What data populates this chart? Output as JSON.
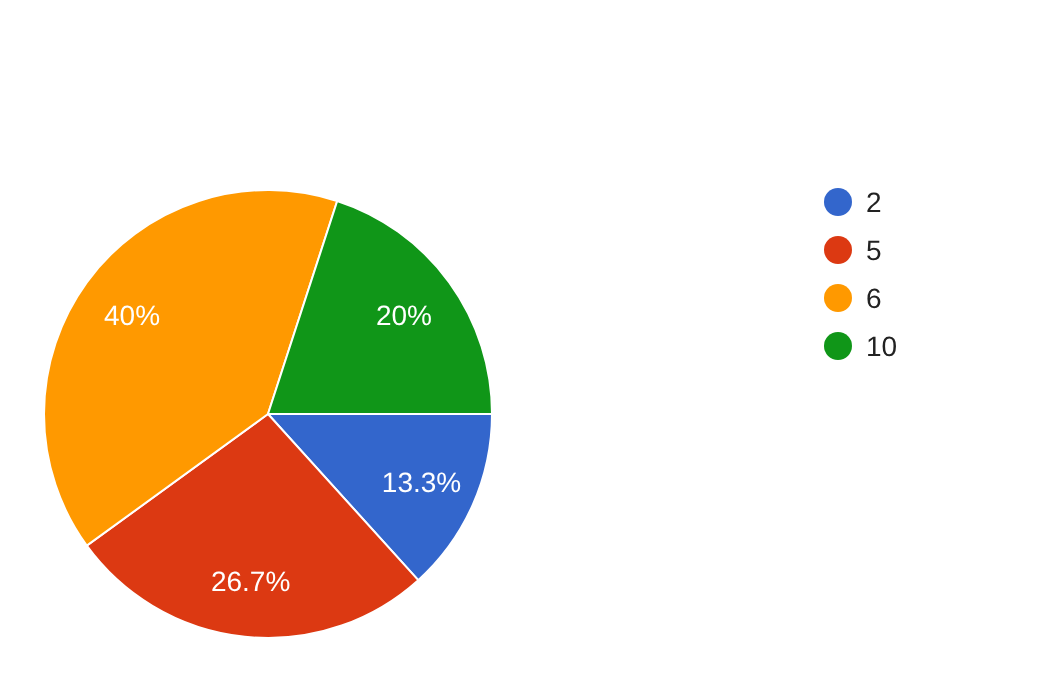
{
  "chart_data": {
    "type": "pie",
    "categories": [
      "2",
      "5",
      "6",
      "10"
    ],
    "values": [
      13.3,
      26.7,
      40,
      20
    ],
    "value_labels": [
      "13.3%",
      "26.7%",
      "40%",
      "20%"
    ],
    "colors": [
      "#3366cc",
      "#dc3912",
      "#ff9900",
      "#109618"
    ],
    "legend": "right"
  }
}
